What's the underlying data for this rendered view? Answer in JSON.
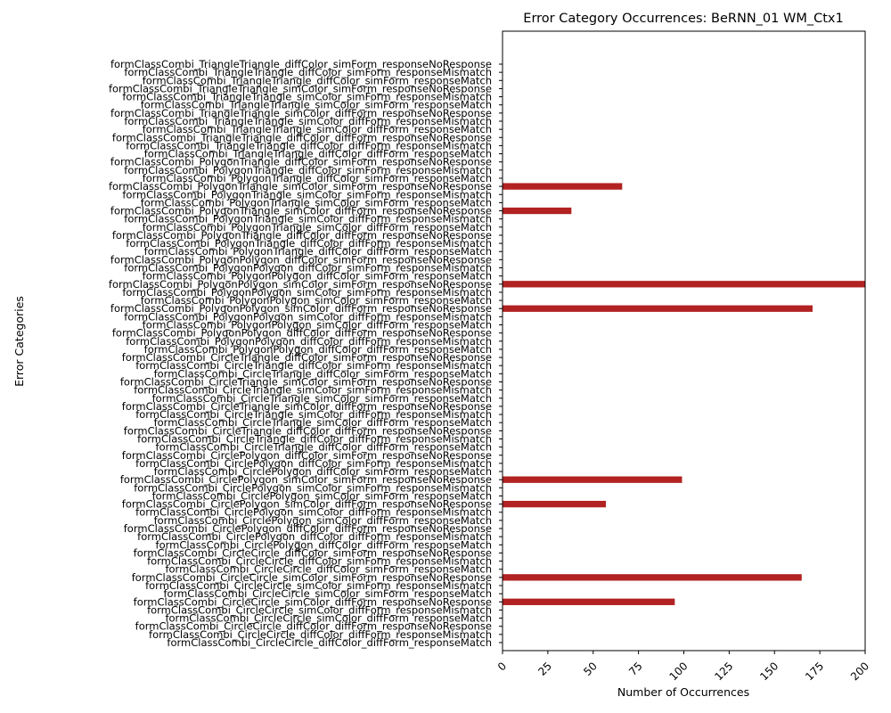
{
  "chart_data": {
    "type": "bar",
    "orientation": "horizontal",
    "title": "Error Category Occurrences: BeRNN_01 WM_Ctx1",
    "xlabel": "Number of Occurrences",
    "ylabel": "Error Categories",
    "xlim": [
      0,
      200
    ],
    "xticks": [
      "0",
      "25",
      "50",
      "75",
      "100",
      "125",
      "150",
      "175",
      "200"
    ],
    "bar_color": "#b22222",
    "grid": false,
    "categories": [
      "formClassCombi_CircleCircle_diffColor_diffForm_responseMatch",
      "formClassCombi_CircleCircle_diffColor_diffForm_responseMismatch",
      "formClassCombi_CircleCircle_diffColor_diffForm_responseNoResponse",
      "formClassCombi_CircleCircle_simColor_diffForm_responseMatch",
      "formClassCombi_CircleCircle_simColor_diffForm_responseMismatch",
      "formClassCombi_CircleCircle_simColor_diffForm_responseNoResponse",
      "formClassCombi_CircleCircle_simColor_simForm_responseMatch",
      "formClassCombi_CircleCircle_simColor_simForm_responseMismatch",
      "formClassCombi_CircleCircle_simColor_simForm_responseNoResponse",
      "formClassCombi_CircleCircle_diffColor_simForm_responseMatch",
      "formClassCombi_CircleCircle_diffColor_simForm_responseMismatch",
      "formClassCombi_CircleCircle_diffColor_simForm_responseNoResponse",
      "formClassCombi_CirclePolygon_diffColor_diffForm_responseMatch",
      "formClassCombi_CirclePolygon_diffColor_diffForm_responseMismatch",
      "formClassCombi_CirclePolygon_diffColor_diffForm_responseNoResponse",
      "formClassCombi_CirclePolygon_simColor_diffForm_responseMatch",
      "formClassCombi_CirclePolygon_simColor_diffForm_responseMismatch",
      "formClassCombi_CirclePolygon_simColor_diffForm_responseNoResponse",
      "formClassCombi_CirclePolygon_simColor_simForm_responseMatch",
      "formClassCombi_CirclePolygon_simColor_simForm_responseMismatch",
      "formClassCombi_CirclePolygon_simColor_simForm_responseNoResponse",
      "formClassCombi_CirclePolygon_diffColor_simForm_responseMatch",
      "formClassCombi_CirclePolygon_diffColor_simForm_responseMismatch",
      "formClassCombi_CirclePolygon_diffColor_simForm_responseNoResponse",
      "formClassCombi_CircleTriangle_diffColor_diffForm_responseMatch",
      "formClassCombi_CircleTriangle_diffColor_diffForm_responseMismatch",
      "formClassCombi_CircleTriangle_diffColor_diffForm_responseNoResponse",
      "formClassCombi_CircleTriangle_simColor_diffForm_responseMatch",
      "formClassCombi_CircleTriangle_simColor_diffForm_responseMismatch",
      "formClassCombi_CircleTriangle_simColor_diffForm_responseNoResponse",
      "formClassCombi_CircleTriangle_simColor_simForm_responseMatch",
      "formClassCombi_CircleTriangle_simColor_simForm_responseMismatch",
      "formClassCombi_CircleTriangle_simColor_simForm_responseNoResponse",
      "formClassCombi_CircleTriangle_diffColor_simForm_responseMatch",
      "formClassCombi_CircleTriangle_diffColor_simForm_responseMismatch",
      "formClassCombi_CircleTriangle_diffColor_simForm_responseNoResponse",
      "formClassCombi_PolygonPolygon_diffColor_diffForm_responseMatch",
      "formClassCombi_PolygonPolygon_diffColor_diffForm_responseMismatch",
      "formClassCombi_PolygonPolygon_diffColor_diffForm_responseNoResponse",
      "formClassCombi_PolygonPolygon_simColor_diffForm_responseMatch",
      "formClassCombi_PolygonPolygon_simColor_diffForm_responseMismatch",
      "formClassCombi_PolygonPolygon_simColor_diffForm_responseNoResponse",
      "formClassCombi_PolygonPolygon_simColor_simForm_responseMatch",
      "formClassCombi_PolygonPolygon_simColor_simForm_responseMismatch",
      "formClassCombi_PolygonPolygon_simColor_simForm_responseNoResponse",
      "formClassCombi_PolygonPolygon_diffColor_simForm_responseMatch",
      "formClassCombi_PolygonPolygon_diffColor_simForm_responseMismatch",
      "formClassCombi_PolygonPolygon_diffColor_simForm_responseNoResponse",
      "formClassCombi_PolygonTriangle_diffColor_diffForm_responseMatch",
      "formClassCombi_PolygonTriangle_diffColor_diffForm_responseMismatch",
      "formClassCombi_PolygonTriangle_diffColor_diffForm_responseNoResponse",
      "formClassCombi_PolygonTriangle_simColor_diffForm_responseMatch",
      "formClassCombi_PolygonTriangle_simColor_diffForm_responseMismatch",
      "formClassCombi_PolygonTriangle_simColor_diffForm_responseNoResponse",
      "formClassCombi_PolygonTriangle_simColor_simForm_responseMatch",
      "formClassCombi_PolygonTriangle_simColor_simForm_responseMismatch",
      "formClassCombi_PolygonTriangle_simColor_simForm_responseNoResponse",
      "formClassCombi_PolygonTriangle_diffColor_simForm_responseMatch",
      "formClassCombi_PolygonTriangle_diffColor_simForm_responseMismatch",
      "formClassCombi_PolygonTriangle_diffColor_simForm_responseNoResponse",
      "formClassCombi_TriangleTriangle_diffColor_diffForm_responseMatch",
      "formClassCombi_TriangleTriangle_diffColor_diffForm_responseMismatch",
      "formClassCombi_TriangleTriangle_diffColor_diffForm_responseNoResponse",
      "formClassCombi_TriangleTriangle_simColor_diffForm_responseMatch",
      "formClassCombi_TriangleTriangle_simColor_diffForm_responseMismatch",
      "formClassCombi_TriangleTriangle_simColor_diffForm_responseNoResponse",
      "formClassCombi_TriangleTriangle_simColor_simForm_responseMatch",
      "formClassCombi_TriangleTriangle_simColor_simForm_responseMismatch",
      "formClassCombi_TriangleTriangle_simColor_simForm_responseNoResponse",
      "formClassCombi_TriangleTriangle_diffColor_simForm_responseMatch",
      "formClassCombi_TriangleTriangle_diffColor_simForm_responseMismatch",
      "formClassCombi_TriangleTriangle_diffColor_simForm_responseNoResponse"
    ],
    "values": [
      0,
      0,
      0,
      0,
      0,
      95,
      0,
      0,
      165,
      0,
      0,
      0,
      0,
      0,
      0,
      0,
      0,
      57,
      0,
      0,
      99,
      0,
      0,
      0,
      0,
      0,
      0,
      0,
      0,
      0,
      0,
      0,
      0,
      0,
      0,
      0,
      0,
      0,
      0,
      0,
      0,
      171,
      0,
      0,
      200,
      0,
      0,
      0,
      0,
      0,
      0,
      0,
      0,
      38,
      0,
      0,
      66,
      0,
      0,
      0,
      0,
      0,
      0,
      0,
      0,
      0,
      0,
      0,
      0,
      0,
      0,
      0
    ]
  }
}
